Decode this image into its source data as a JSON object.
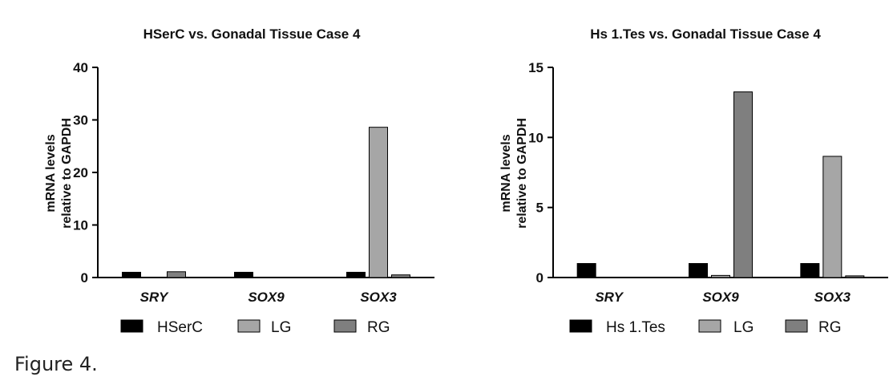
{
  "caption": "Figure 4.",
  "chart_data": [
    {
      "type": "bar",
      "title": "HSerC vs. Gonadal Tissue Case 4",
      "ylabel_lines": [
        "mRNA levels",
        "relative to GAPDH"
      ],
      "categories": [
        "SRY",
        "SOX9",
        "SOX3"
      ],
      "ylim": [
        0,
        40
      ],
      "yticks": [
        0,
        10,
        20,
        30,
        40
      ],
      "grid": false,
      "legend_position": "bottom",
      "series": [
        {
          "name": "HSerC",
          "color": "#000000",
          "values": [
            1.0,
            1.0,
            1.0
          ]
        },
        {
          "name": "LG",
          "color": "#a6a6a6",
          "values": [
            0.0,
            0.0,
            28.6
          ]
        },
        {
          "name": "RG",
          "color": "#7f7f7f",
          "values": [
            1.1,
            0.0,
            0.5
          ]
        }
      ]
    },
    {
      "type": "bar",
      "title": "Hs 1.Tes vs. Gonadal Tissue Case 4",
      "ylabel_lines": [
        "mRNA levels",
        "relative to GAPDH"
      ],
      "categories": [
        "SRY",
        "SOX9",
        "SOX3"
      ],
      "ylim": [
        0,
        15
      ],
      "yticks": [
        0,
        5,
        10,
        15
      ],
      "grid": false,
      "legend_position": "bottom",
      "series": [
        {
          "name": "Hs 1.Tes",
          "color": "#000000",
          "values": [
            1.0,
            1.0,
            1.0
          ]
        },
        {
          "name": "LG",
          "color": "#a6a6a6",
          "values": [
            0.0,
            0.15,
            8.65
          ]
        },
        {
          "name": "RG",
          "color": "#7f7f7f",
          "values": [
            0.0,
            13.25,
            0.12
          ]
        }
      ]
    }
  ]
}
